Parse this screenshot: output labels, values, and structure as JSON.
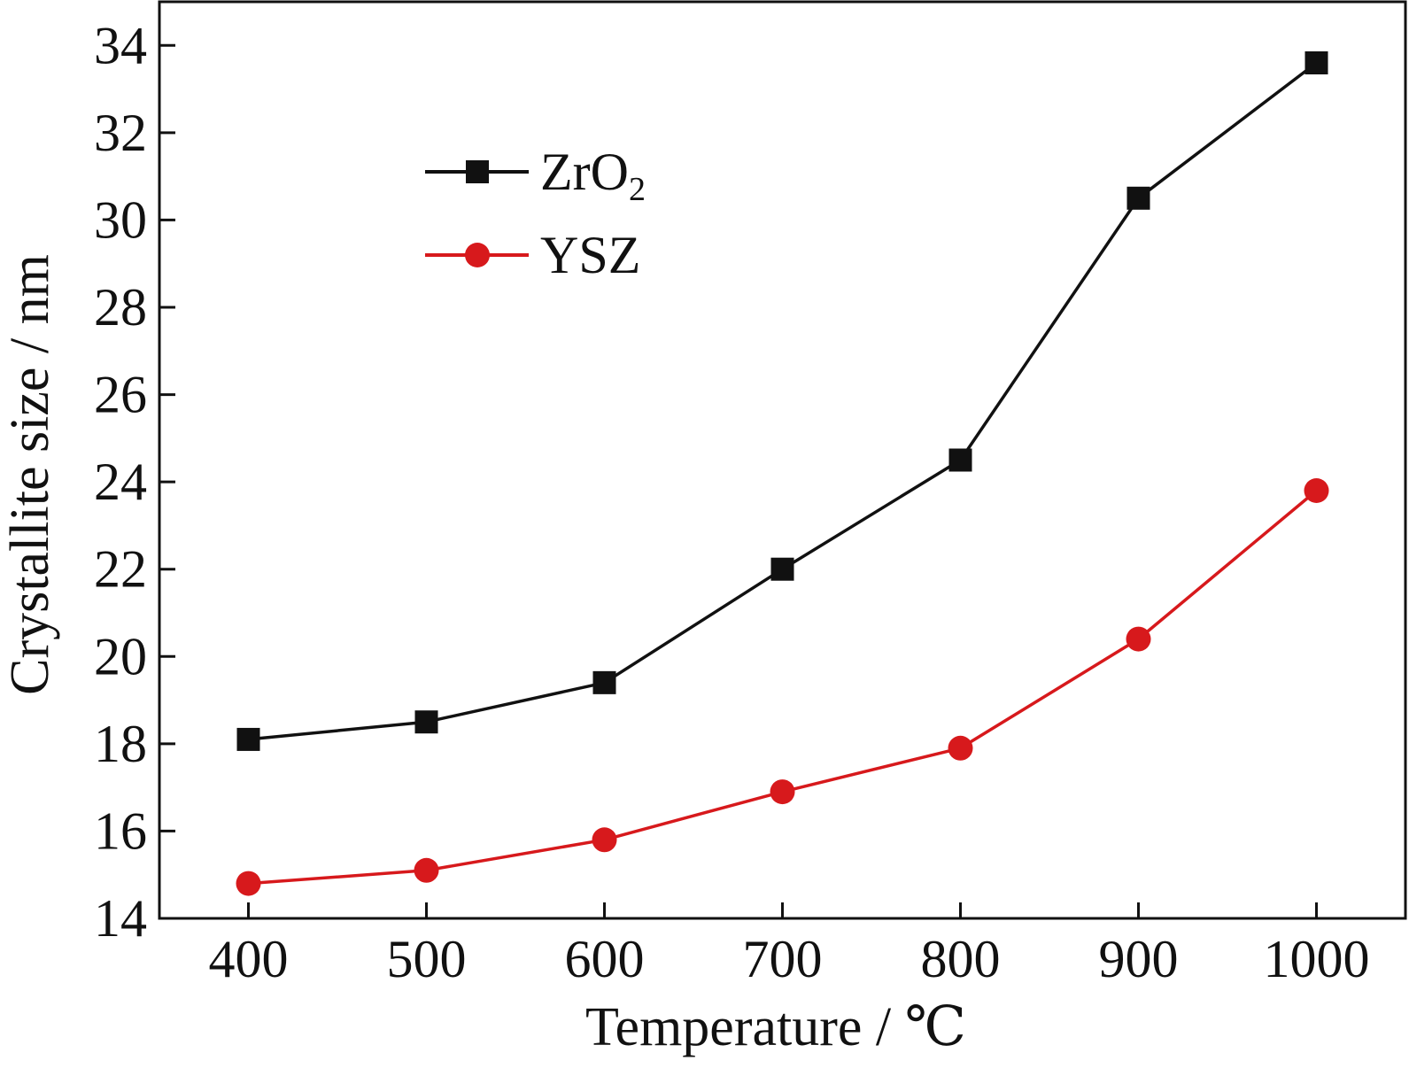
{
  "chart_data": {
    "type": "line",
    "xlabel": "Temperature / ℃",
    "ylabel": "Crystallite size / nm",
    "x": [
      400,
      500,
      600,
      700,
      800,
      900,
      1000
    ],
    "xticks": [
      "400",
      "500",
      "600",
      "700",
      "800",
      "900",
      "1000"
    ],
    "yticks": [
      "14",
      "16",
      "18",
      "20",
      "22",
      "24",
      "26",
      "28",
      "30",
      "32",
      "34"
    ],
    "ylim": [
      14,
      35
    ],
    "xlim": [
      350,
      1050
    ],
    "grid": false,
    "legend_position": "top-left",
    "series": [
      {
        "name": "ZrO2",
        "name_main": "ZrO",
        "name_sub": "2",
        "color": "#111111",
        "marker": "square",
        "values": [
          18.1,
          18.5,
          19.4,
          22.0,
          24.5,
          30.5,
          33.6
        ]
      },
      {
        "name": "YSZ",
        "color": "#d7191c",
        "marker": "circle",
        "values": [
          14.8,
          15.1,
          15.8,
          16.9,
          17.9,
          20.4,
          23.8
        ]
      }
    ]
  }
}
